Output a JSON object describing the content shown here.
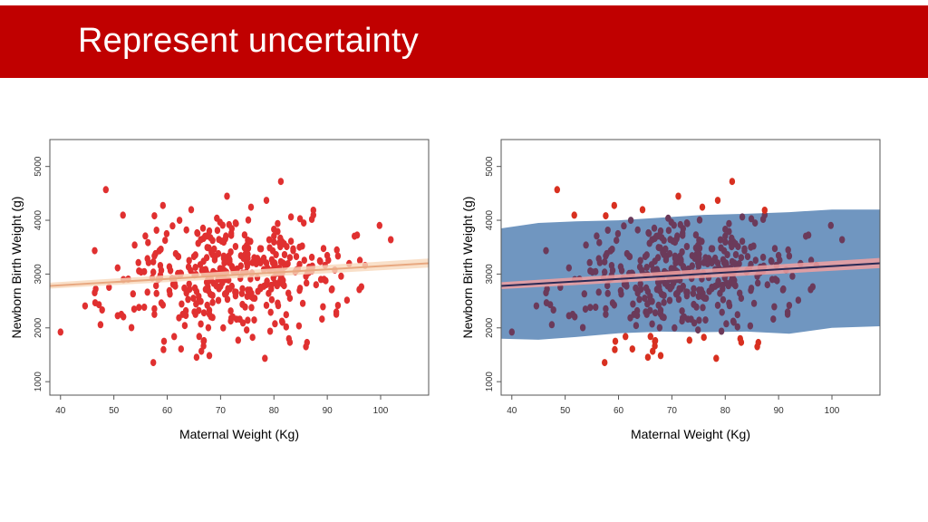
{
  "slide": {
    "title": "Represent uncertainty",
    "colors": {
      "title_bar": "#c00000",
      "title_text": "#ffffff"
    }
  },
  "chart_data": [
    {
      "type": "scatter",
      "variant": "regression-with-confidence-band",
      "title": "",
      "xlabel": "Maternal Weight (Kg)",
      "ylabel": "Newborn Birth Weight (g)",
      "xlim": [
        38,
        109
      ],
      "ylim": [
        750,
        5500
      ],
      "xticks": [
        40,
        50,
        60,
        70,
        80,
        90,
        100
      ],
      "yticks": [
        1000,
        2000,
        3000,
        4000,
        5000
      ],
      "grid": false,
      "colors": {
        "points": "#e03030",
        "line": "#e8a880",
        "band": "#f8d8bc"
      },
      "regression": {
        "x": [
          38,
          109
        ],
        "y": [
          2780,
          3200
        ]
      },
      "confidence_band": {
        "x": [
          38,
          109
        ],
        "lower": [
          2730,
          3120
        ],
        "upper": [
          2840,
          3290
        ]
      },
      "points": {
        "x": [],
        "y": []
      }
    },
    {
      "type": "scatter",
      "variant": "regression-with-confidence-and-prediction-band",
      "title": "",
      "xlabel": "Maternal Weight (Kg)",
      "ylabel": "Newborn Birth Weight (g)",
      "xlim": [
        38,
        109
      ],
      "ylim": [
        750,
        5500
      ],
      "xticks": [
        40,
        50,
        60,
        70,
        80,
        90,
        100
      ],
      "yticks": [
        1000,
        2000,
        3000,
        4000,
        5000
      ],
      "grid": false,
      "colors": {
        "points": "#6b3a5a",
        "points_outside": "#d83020",
        "line": "#2a2a55",
        "band": "#f0a0a0",
        "prediction_band": "#7096c0"
      },
      "regression": {
        "x": [
          38,
          109
        ],
        "y": [
          2780,
          3200
        ]
      },
      "confidence_band": {
        "x": [
          38,
          109
        ],
        "lower": [
          2720,
          3110
        ],
        "upper": [
          2850,
          3300
        ]
      },
      "prediction_band": {
        "x": [
          38,
          45,
          52,
          60,
          68,
          76,
          84,
          92,
          100,
          109
        ],
        "lower": [
          1800,
          1780,
          1830,
          1900,
          1930,
          1920,
          1930,
          1890,
          2000,
          2030
        ],
        "upper": [
          3850,
          3950,
          3980,
          4000,
          4050,
          4100,
          4120,
          4150,
          4200,
          4200
        ]
      },
      "points": {
        "x": [],
        "y": []
      }
    }
  ]
}
